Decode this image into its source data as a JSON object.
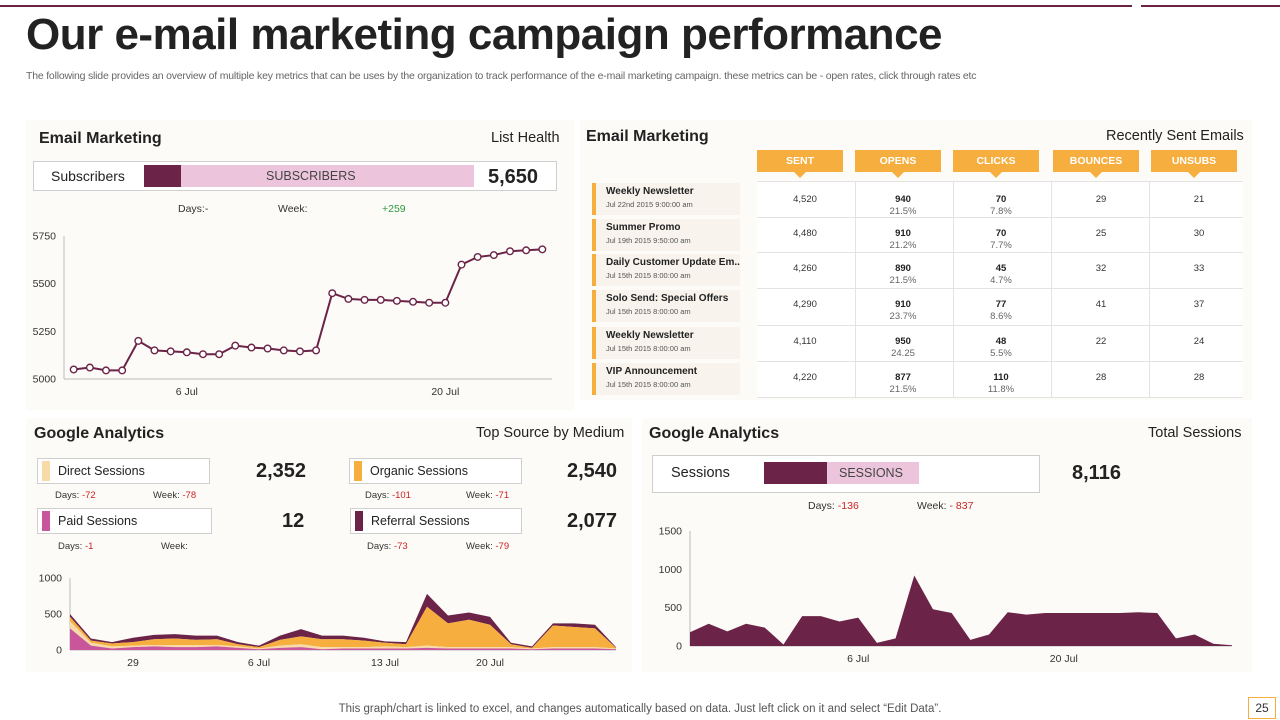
{
  "slide": {
    "title": "Our e-mail marketing campaign performance",
    "subtitle": "The following slide provides an overview of multiple key metrics that can be uses by the organization to track performance of the e-mail marketing campaign. these metrics can be - open rates, click through rates etc",
    "footer": "This graph/chart is linked to excel,  and changes automatically based on data. Just left click on it and select “Edit Data”.",
    "page_number": "25",
    "accent_color": "#6b2447",
    "orange_color": "#f6ae3f"
  },
  "email_list": {
    "title": "Email Marketing",
    "right_label": "List Health",
    "metric_label": "Subscribers",
    "bar_label": "SUBSCRIBERS",
    "value": "5,650",
    "days_label": "Days:-",
    "week_label": "Week:",
    "week_value": "+259"
  },
  "recent_emails": {
    "title": "Email Marketing",
    "right_label": "Recently Sent Emails",
    "headers": [
      "SENT",
      "OPENS",
      "CLICKS",
      "BOUNCES",
      "UNSUBS"
    ],
    "rows": [
      {
        "name": "Weekly Newsletter",
        "date": "Jul 22nd 2015 9:00:00 am",
        "sent": "4,520",
        "opens": "940",
        "opens_pct": "21.5%",
        "clicks": "70",
        "clicks_pct": "7.8%",
        "bounces": "29",
        "unsubs": "21"
      },
      {
        "name": "Summer Promo",
        "date": "Jul 19th 2015 9:50:00  am",
        "sent": "4,480",
        "opens": "910",
        "opens_pct": "21.2%",
        "clicks": "70",
        "clicks_pct": "7.7%",
        "bounces": "25",
        "unsubs": "30"
      },
      {
        "name": "Daily Customer Update Em..",
        "date": "Jul 15th 2015 8:00:00 am",
        "sent": "4,260",
        "opens": "890",
        "opens_pct": "21.5%",
        "clicks": "45",
        "clicks_pct": "4.7%",
        "bounces": "32",
        "unsubs": "33"
      },
      {
        "name": "Solo Send: Special Offers",
        "date": "Jul 15th 2015 8:00:00  am",
        "sent": "4,290",
        "opens": "910",
        "opens_pct": "23.7%",
        "clicks": "77",
        "clicks_pct": "8.6%",
        "bounces": "41",
        "unsubs": "37"
      },
      {
        "name": "Weekly Newsletter",
        "date": "Jul 15th 2015 8:00:00  am",
        "sent": "4,110",
        "opens": "950",
        "opens_pct": "24.25",
        "clicks": "48",
        "clicks_pct": "5.5%",
        "bounces": "22",
        "unsubs": "24"
      },
      {
        "name": "VIP Announcement",
        "date": "Jul 15th 2015 8:00:00  am",
        "sent": "4,220",
        "opens": "877",
        "opens_pct": "21.5%",
        "clicks": "110",
        "clicks_pct": "11.8%",
        "bounces": "28",
        "unsubs": "28"
      }
    ]
  },
  "ga_sources": {
    "title": "Google Analytics",
    "right_label": "Top Source by Medium",
    "metrics": [
      {
        "label": "Direct Sessions",
        "value": "2,352",
        "days": "Days: ",
        "days_val": "-72",
        "week": "Week: ",
        "week_val": "-78",
        "color": "#f8d9a8"
      },
      {
        "label": "Organic Sessions",
        "value": "2,540",
        "days": "Days: ",
        "days_val": "-101",
        "week": "Week: ",
        "week_val": "-71",
        "color": "#f6ae3f"
      },
      {
        "label": "Paid Sessions",
        "value": "12",
        "days": "Days: ",
        "days_val": "-1",
        "week": "Week:",
        "week_val": "",
        "color": "#c9559a"
      },
      {
        "label": "Referral Sessions",
        "value": "2,077",
        "days": "Days: ",
        "days_val": "-73",
        "week": "Week: ",
        "week_val": "-79",
        "color": "#6b2447"
      }
    ]
  },
  "ga_sessions": {
    "title": "Google Analytics",
    "right_label": "Total Sessions",
    "metric_label": "Sessions",
    "bar_label": "SESSIONS",
    "value": "8,116",
    "days": "Days: ",
    "days_val": "-136",
    "week": "Week: ",
    "week_val": "- 837"
  },
  "chart_data": [
    {
      "type": "line",
      "title": "Subscribers",
      "x": [
        1,
        2,
        3,
        4,
        5,
        6,
        7,
        8,
        9,
        10,
        11,
        12,
        13,
        14,
        15,
        16,
        17,
        18,
        19,
        20,
        21,
        22,
        23,
        24,
        25,
        26,
        27,
        28,
        29,
        30
      ],
      "values": [
        5050,
        5060,
        5045,
        5045,
        5200,
        5150,
        5145,
        5140,
        5130,
        5130,
        5175,
        5165,
        5160,
        5150,
        5145,
        5150,
        5450,
        5420,
        5415,
        5415,
        5410,
        5405,
        5400,
        5400,
        5600,
        5640,
        5650,
        5670,
        5675,
        5680
      ],
      "xticks": [
        {
          "x": 8,
          "label": "6 Jul"
        },
        {
          "x": 24,
          "label": "20 Jul"
        }
      ],
      "ylim": [
        5000,
        5750
      ],
      "yticks": [
        5000,
        5250,
        5500,
        5750
      ],
      "color": "#6b2447"
    },
    {
      "type": "area",
      "title": "Top Source by Medium",
      "x": [
        1,
        2,
        3,
        4,
        5,
        6,
        7,
        8,
        9,
        10,
        11,
        12,
        13,
        14,
        15,
        16,
        17,
        18,
        19,
        20,
        21,
        22,
        23,
        24,
        25,
        26,
        27
      ],
      "series": [
        {
          "name": "Paid Sessions",
          "color": "#c9559a",
          "values": [
            300,
            60,
            20,
            40,
            50,
            40,
            40,
            50,
            30,
            10,
            30,
            40,
            10,
            20,
            20,
            20,
            20,
            30,
            20,
            20,
            20,
            20,
            10,
            20,
            20,
            20,
            10
          ]
        },
        {
          "name": "Direct Sessions",
          "color": "#f8d9a8",
          "values": [
            100,
            40,
            30,
            20,
            20,
            30,
            30,
            20,
            20,
            10,
            30,
            40,
            30,
            20,
            20,
            30,
            20,
            30,
            20,
            20,
            20,
            20,
            10,
            20,
            20,
            20,
            10
          ]
        },
        {
          "name": "Organic Sessions",
          "color": "#f6ae3f",
          "values": [
            60,
            30,
            40,
            50,
            80,
            90,
            70,
            80,
            30,
            20,
            80,
            110,
            110,
            110,
            90,
            50,
            40,
            540,
            330,
            380,
            310,
            40,
            10,
            300,
            280,
            260,
            10
          ]
        },
        {
          "name": "Referral Sessions",
          "color": "#6b2447",
          "values": [
            40,
            30,
            20,
            60,
            60,
            60,
            60,
            50,
            30,
            20,
            60,
            100,
            50,
            50,
            40,
            20,
            30,
            180,
            110,
            100,
            110,
            20,
            20,
            30,
            50,
            50,
            10
          ]
        }
      ],
      "xticks": [
        {
          "x": 4,
          "label": "29"
        },
        {
          "x": 10,
          "label": "6 Jul"
        },
        {
          "x": 16,
          "label": "13 Jul"
        },
        {
          "x": 21,
          "label": "20 Jul"
        }
      ],
      "ylim": [
        0,
        1000
      ],
      "yticks": [
        0,
        500,
        1000
      ]
    },
    {
      "type": "area",
      "title": "Total Sessions",
      "x": [
        1,
        2,
        3,
        4,
        5,
        6,
        7,
        8,
        9,
        10,
        11,
        12,
        13,
        14,
        15,
        16,
        17,
        18,
        19,
        20,
        21,
        22,
        23,
        24,
        25,
        26,
        27,
        28,
        29,
        30
      ],
      "values": [
        180,
        290,
        190,
        290,
        240,
        20,
        390,
        390,
        320,
        370,
        40,
        100,
        920,
        480,
        430,
        80,
        150,
        440,
        410,
        430,
        430,
        430,
        430,
        430,
        440,
        430,
        100,
        150,
        30,
        10
      ],
      "xticks": [
        {
          "x": 10,
          "label": "6 Jul"
        },
        {
          "x": 21,
          "label": "20 Jul"
        }
      ],
      "ylim": [
        0,
        1500
      ],
      "yticks": [
        0,
        500,
        1000,
        1500
      ],
      "color": "#6b2447"
    }
  ]
}
